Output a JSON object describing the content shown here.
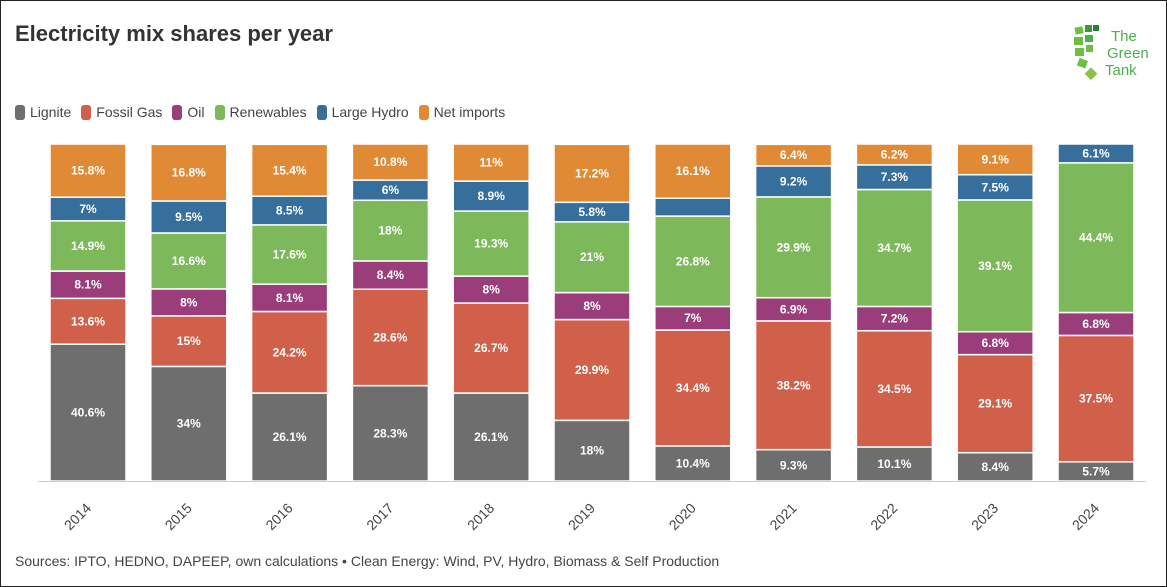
{
  "title": "Electricity mix shares per year",
  "logo_text": "The Green Tank",
  "footer": "Sources: IPTO, HEDNO, DAPEEP, own calculations • Clean Energy: Wind, PV, Hydro, Biomass & Self Production",
  "chart_data": {
    "type": "bar",
    "stacked": true,
    "title": "Electricity mix shares per year",
    "xlabel": "",
    "ylabel": "",
    "ylim": [
      0,
      100
    ],
    "grid": false,
    "legend_position": "top-left",
    "categories": [
      "2014",
      "2015",
      "2016",
      "2017",
      "2018",
      "2019",
      "2020",
      "2021",
      "2022",
      "2023",
      "2024"
    ],
    "series": [
      {
        "name": "Lignite",
        "color": "#6e6e6e",
        "values": [
          40.6,
          34,
          26.1,
          28.3,
          26.1,
          18,
          10.4,
          9.3,
          10.1,
          8.4,
          5.7
        ],
        "labels": [
          "40.6%",
          "34%",
          "26.1%",
          "28.3%",
          "26.1%",
          "18%",
          "10.4%",
          "9.3%",
          "10.1%",
          "8.4%",
          "5.7%"
        ]
      },
      {
        "name": "Fossil Gas",
        "color": "#d0604a",
        "values": [
          13.6,
          15,
          24.2,
          28.6,
          26.7,
          29.9,
          34.4,
          38.2,
          34.5,
          29.1,
          37.5
        ],
        "labels": [
          "13.6%",
          "15%",
          "24.2%",
          "28.6%",
          "26.7%",
          "29.9%",
          "34.4%",
          "38.2%",
          "34.5%",
          "29.1%",
          "37.5%"
        ]
      },
      {
        "name": "Oil",
        "color": "#9a3d7a",
        "values": [
          8.1,
          8,
          8.1,
          8.4,
          8,
          8,
          7,
          6.9,
          7.2,
          6.8,
          6.8
        ],
        "labels": [
          "8.1%",
          "8%",
          "8.1%",
          "8.4%",
          "8%",
          "8%",
          "7%",
          "6.9%",
          "7.2%",
          "6.8%",
          "6.8%"
        ]
      },
      {
        "name": "Renewables",
        "color": "#7db85a",
        "values": [
          14.9,
          16.6,
          17.6,
          18,
          19.3,
          21,
          26.8,
          29.9,
          34.7,
          39.1,
          44.4
        ],
        "labels": [
          "14.9%",
          "16.6%",
          "17.6%",
          "18%",
          "19.3%",
          "21%",
          "26.8%",
          "29.9%",
          "34.7%",
          "39.1%",
          "44.4%"
        ]
      },
      {
        "name": "Large Hydro",
        "color": "#366f9c",
        "values": [
          7,
          9.5,
          8.5,
          6,
          8.9,
          5.8,
          5.3,
          9.2,
          7.3,
          7.5,
          6.1
        ],
        "labels": [
          "7%",
          "9.5%",
          "8.5%",
          "6%",
          "8.9%",
          "5.8%",
          "",
          "9.2%",
          "7.3%",
          "7.5%",
          "6.1%"
        ]
      },
      {
        "name": "Net imports",
        "color": "#e08a35",
        "values": [
          15.8,
          16.8,
          15.4,
          10.8,
          11,
          17.2,
          16.1,
          6.4,
          6.2,
          9.1,
          0
        ],
        "labels": [
          "15.8%",
          "16.8%",
          "15.4%",
          "10.8%",
          "11%",
          "17.2%",
          "16.1%",
          "6.4%",
          "6.2%",
          "9.1%",
          ""
        ]
      }
    ]
  }
}
